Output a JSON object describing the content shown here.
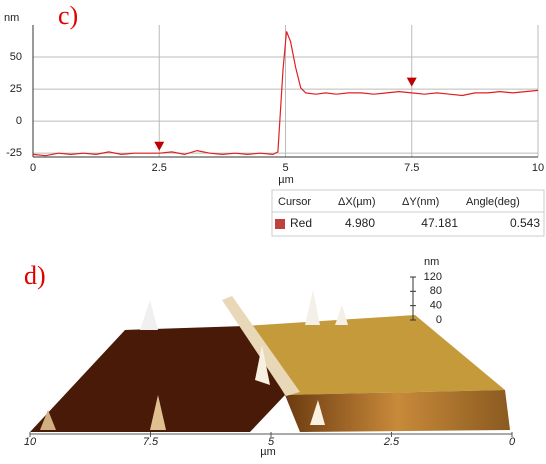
{
  "chart_data": [
    {
      "type": "line",
      "title": "c)",
      "ylabel": "nm",
      "xlabel": "µm",
      "xlim": [
        0,
        10
      ],
      "ylim": [
        -28,
        75
      ],
      "xticks": [
        0,
        2.5,
        5,
        7.5,
        10
      ],
      "yticks": [
        -25,
        0,
        25,
        50
      ],
      "grid": true,
      "x": [
        0,
        0.25,
        0.5,
        0.75,
        1,
        1.25,
        1.5,
        1.75,
        2,
        2.25,
        2.5,
        2.75,
        3,
        3.25,
        3.5,
        3.75,
        4,
        4.25,
        4.5,
        4.75,
        4.85,
        4.95,
        5.02,
        5.1,
        5.2,
        5.3,
        5.4,
        5.6,
        5.8,
        6,
        6.25,
        6.5,
        6.75,
        7,
        7.25,
        7.5,
        7.75,
        8,
        8.25,
        8.5,
        8.75,
        9,
        9.25,
        9.5,
        9.75,
        10
      ],
      "values": [
        -26,
        -27,
        -25,
        -26,
        -25,
        -26,
        -24,
        -26,
        -25,
        -25,
        -25,
        -24,
        -26,
        -23,
        -25,
        -26,
        -25,
        -26,
        -25,
        -26,
        -24,
        40,
        70,
        62,
        42,
        26,
        22,
        21,
        22,
        21,
        22,
        22,
        21,
        22,
        23,
        22,
        21,
        22,
        21,
        20,
        22,
        22,
        23,
        22,
        23,
        24
      ],
      "color": "#e02020",
      "cursors": [
        {
          "x": 2.5,
          "y": -20
        },
        {
          "x": 7.5,
          "y": 30
        }
      ],
      "cursor_color": "#c00000",
      "table": {
        "columns": [
          "Cursor",
          "ΔX(µm)",
          "ΔY(nm)",
          "Angle(deg)"
        ],
        "rows": [
          [
            "Red",
            "4.980",
            "47.181",
            "0.543"
          ]
        ]
      }
    },
    {
      "type": "surface",
      "title": "d)",
      "zlabel": "nm",
      "xlabel": "µm",
      "zlim": [
        0,
        120
      ],
      "zticks": [
        0,
        40,
        80,
        120
      ],
      "xlim": [
        10,
        0
      ],
      "xticks": [
        10,
        7.5,
        5,
        2.5,
        0
      ]
    }
  ]
}
